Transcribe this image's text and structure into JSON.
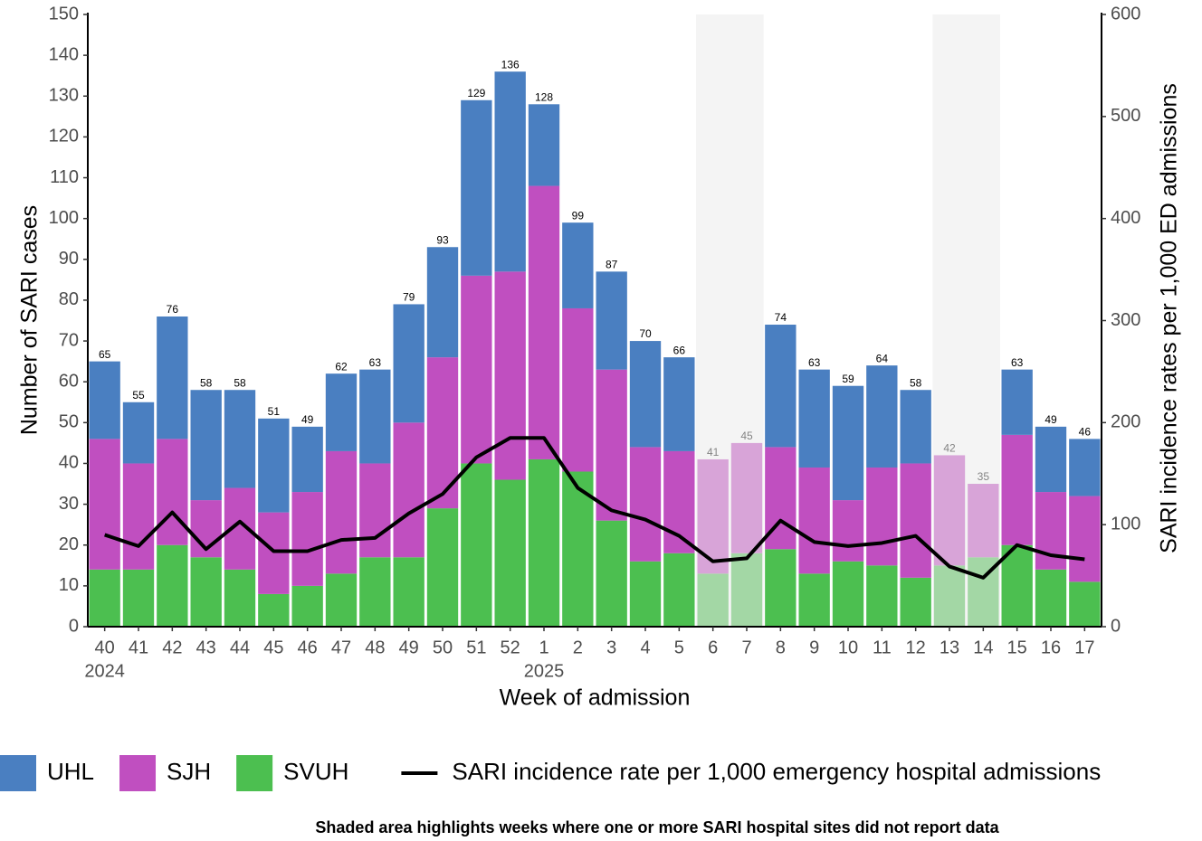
{
  "chart_data": {
    "type": "stacked_bar_line",
    "x_label": "Week of admission",
    "y_label": "Number of SARI cases",
    "y2_label": "SARI incidence rates per 1,000 ED admissions",
    "categories": [
      "40",
      "41",
      "42",
      "43",
      "44",
      "45",
      "46",
      "47",
      "48",
      "49",
      "50",
      "51",
      "52",
      "1",
      "2",
      "3",
      "4",
      "5",
      "6",
      "7",
      "8",
      "9",
      "10",
      "11",
      "12",
      "13",
      "14",
      "15",
      "16",
      "17"
    ],
    "category_years": [
      "2024",
      null,
      null,
      null,
      null,
      null,
      null,
      null,
      null,
      null,
      null,
      null,
      null,
      "2025",
      null,
      null,
      null,
      null,
      null,
      null,
      null,
      null,
      null,
      null,
      null,
      null,
      null,
      null,
      null,
      null
    ],
    "series": [
      {
        "name": "UHL",
        "color": "#4a7fc1",
        "values": [
          19,
          15,
          30,
          27,
          24,
          23,
          16,
          19,
          23,
          29,
          27,
          43,
          49,
          20,
          21,
          24,
          26,
          23,
          0,
          0,
          30,
          24,
          28,
          25,
          18,
          0,
          0,
          16,
          16,
          14
        ]
      },
      {
        "name": "SJH",
        "color": "#c04fc0",
        "values": [
          32,
          26,
          26,
          14,
          20,
          20,
          23,
          30,
          23,
          33,
          37,
          46,
          51,
          67,
          40,
          37,
          28,
          25,
          28,
          27,
          25,
          26,
          15,
          24,
          28,
          27,
          18,
          27,
          19,
          21
        ]
      },
      {
        "name": "SVUH",
        "color": "#4cbf50",
        "values": [
          14,
          14,
          20,
          17,
          14,
          8,
          10,
          13,
          17,
          17,
          29,
          40,
          36,
          41,
          38,
          26,
          16,
          18,
          13,
          18,
          19,
          13,
          16,
          15,
          12,
          15,
          17,
          20,
          14,
          11
        ]
      }
    ],
    "totals": [
      65,
      55,
      76,
      58,
      58,
      51,
      49,
      62,
      63,
      79,
      93,
      129,
      136,
      128,
      99,
      87,
      70,
      66,
      41,
      45,
      74,
      63,
      59,
      64,
      58,
      42,
      35,
      63,
      49,
      46
    ],
    "line": {
      "name": "SARI incidence rate per 1,000 emergency hospital admissions",
      "color": "#000000",
      "axis": "y2",
      "values": [
        90,
        79,
        112,
        76,
        103,
        74,
        74,
        85,
        87,
        111,
        130,
        166,
        185,
        185,
        136,
        114,
        105,
        89,
        64,
        67,
        104,
        83,
        79,
        82,
        89,
        59,
        48,
        80,
        70,
        66
      ]
    },
    "shaded_categories": [
      "6",
      "7",
      "13",
      "14"
    ],
    "shade_color": "#ebebeb",
    "ylim": [
      0,
      150
    ],
    "yticks": [
      0,
      10,
      20,
      30,
      40,
      50,
      60,
      70,
      80,
      90,
      100,
      110,
      120,
      130,
      140,
      150
    ],
    "y2lim": [
      0,
      600
    ],
    "y2ticks": [
      0,
      100,
      200,
      300,
      400,
      500,
      600
    ],
    "grid": false,
    "note": "Shaded area highlights weeks where one or more SARI hospital sites did not report data"
  }
}
